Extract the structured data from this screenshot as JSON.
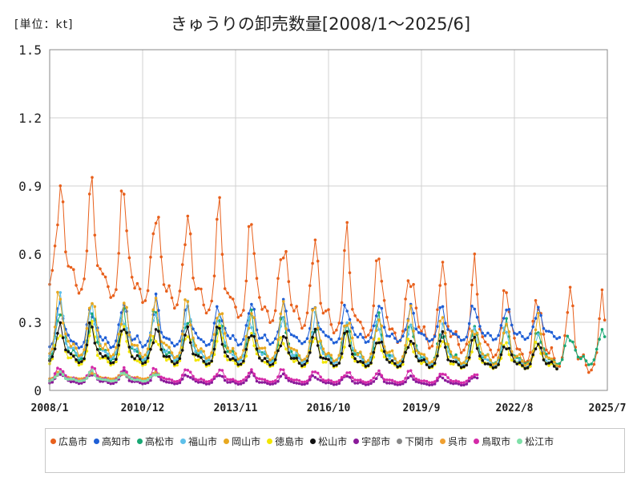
{
  "unit_label": "[単位：kt]",
  "chart_data": {
    "type": "line",
    "title": "きゅうりの卸売数量[2008/1～2025/6]",
    "xlabel": "",
    "ylabel": "",
    "x_start": "2008/1",
    "x_end": "2025/7",
    "xticks": [
      "2008/1",
      "2010/12",
      "2013/11",
      "2016/10",
      "2019/9",
      "2022/8",
      "2025/7"
    ],
    "ylim": [
      0,
      1.5
    ],
    "yticks": [
      "0",
      "0.3",
      "0.6",
      "0.9",
      "1.2",
      "1.5"
    ],
    "grid": true,
    "legend_position": "bottom",
    "series": [
      {
        "name": "広島市",
        "color": "#e8601c",
        "base": 0.44,
        "amp": 0.48,
        "trend": -0.38,
        "end": "2025/6"
      },
      {
        "name": "高知市",
        "color": "#1f5fd6",
        "base": 0.18,
        "amp": 0.2,
        "trend": 0.05,
        "end": "2024/1"
      },
      {
        "name": "高松市",
        "color": "#19a874",
        "base": 0.13,
        "amp": 0.22,
        "trend": -0.02,
        "end": "2025/6"
      },
      {
        "name": "福山市",
        "color": "#5ec0ea",
        "base": 0.14,
        "amp": 0.23,
        "trend": -0.05,
        "end": "2023/12"
      },
      {
        "name": "岡山市",
        "color": "#e8a820",
        "base": 0.15,
        "amp": 0.26,
        "trend": -0.05,
        "end": "2023/12"
      },
      {
        "name": "徳島市",
        "color": "#f2e600",
        "base": 0.11,
        "amp": 0.16,
        "trend": -0.02,
        "end": "2023/12"
      },
      {
        "name": "松山市",
        "color": "#111111",
        "base": 0.12,
        "amp": 0.17,
        "trend": -0.03,
        "end": "2023/12"
      },
      {
        "name": "宇部市",
        "color": "#8a1a9a",
        "base": 0.03,
        "amp": 0.05,
        "trend": -0.01,
        "end": "2021/6"
      },
      {
        "name": "下関市",
        "color": "#888888",
        "base": 0.04,
        "amp": 0.04,
        "trend": 0.0,
        "end": "2011/6"
      },
      {
        "name": "呉市",
        "color": "#f0a030",
        "base": 0.05,
        "amp": 0.03,
        "trend": 0.0,
        "end": "2011/6"
      },
      {
        "name": "鳥取市",
        "color": "#d42aa8",
        "base": 0.04,
        "amp": 0.06,
        "trend": -0.01,
        "end": "2021/6"
      },
      {
        "name": "松江市",
        "color": "#7fe0a8",
        "base": 0.04,
        "amp": 0.04,
        "trend": 0.0,
        "end": "2011/6"
      }
    ]
  }
}
